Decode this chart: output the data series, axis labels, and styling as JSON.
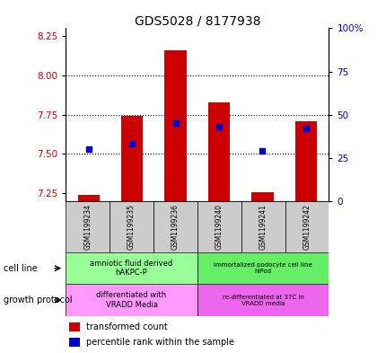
{
  "title": "GDS5028 / 8177938",
  "samples": [
    "GSM1199234",
    "GSM1199235",
    "GSM1199236",
    "GSM1199240",
    "GSM1199241",
    "GSM1199242"
  ],
  "red_values": [
    7.24,
    7.74,
    8.16,
    7.83,
    7.26,
    7.71
  ],
  "blue_values": [
    30,
    33,
    45,
    43,
    29,
    42
  ],
  "ylim_left": [
    7.2,
    8.3
  ],
  "ylim_right": [
    0,
    100
  ],
  "yticks_left": [
    7.25,
    7.5,
    7.75,
    8.0,
    8.25
  ],
  "yticks_right": [
    0,
    25,
    50,
    75,
    100
  ],
  "bar_width": 0.5,
  "red_color": "#cc0000",
  "blue_color": "#0000cc",
  "cell_line_label1": "amniotic fluid derived\nhAKPC-P",
  "cell_line_label2": "immortalized podocyte cell line\nhIPod",
  "cell_line_color1": "#99ff99",
  "cell_line_color2": "#66ee66",
  "growth_protocol_label1": "differentiated with\nVRADD Media",
  "growth_protocol_label2": "re-differentiated at 37C in\nVRADD media",
  "growth_protocol_color1": "#ff99ff",
  "growth_protocol_color2": "#ee66ee",
  "legend_red": "transformed count",
  "legend_blue": "percentile rank within the sample",
  "background_color": "#ffffff",
  "left_label_color": "#cc0000",
  "right_label_color": "#0000cc",
  "gray_box_color": "#cccccc",
  "grid_ticks": [
    7.5,
    7.75,
    8.0
  ]
}
